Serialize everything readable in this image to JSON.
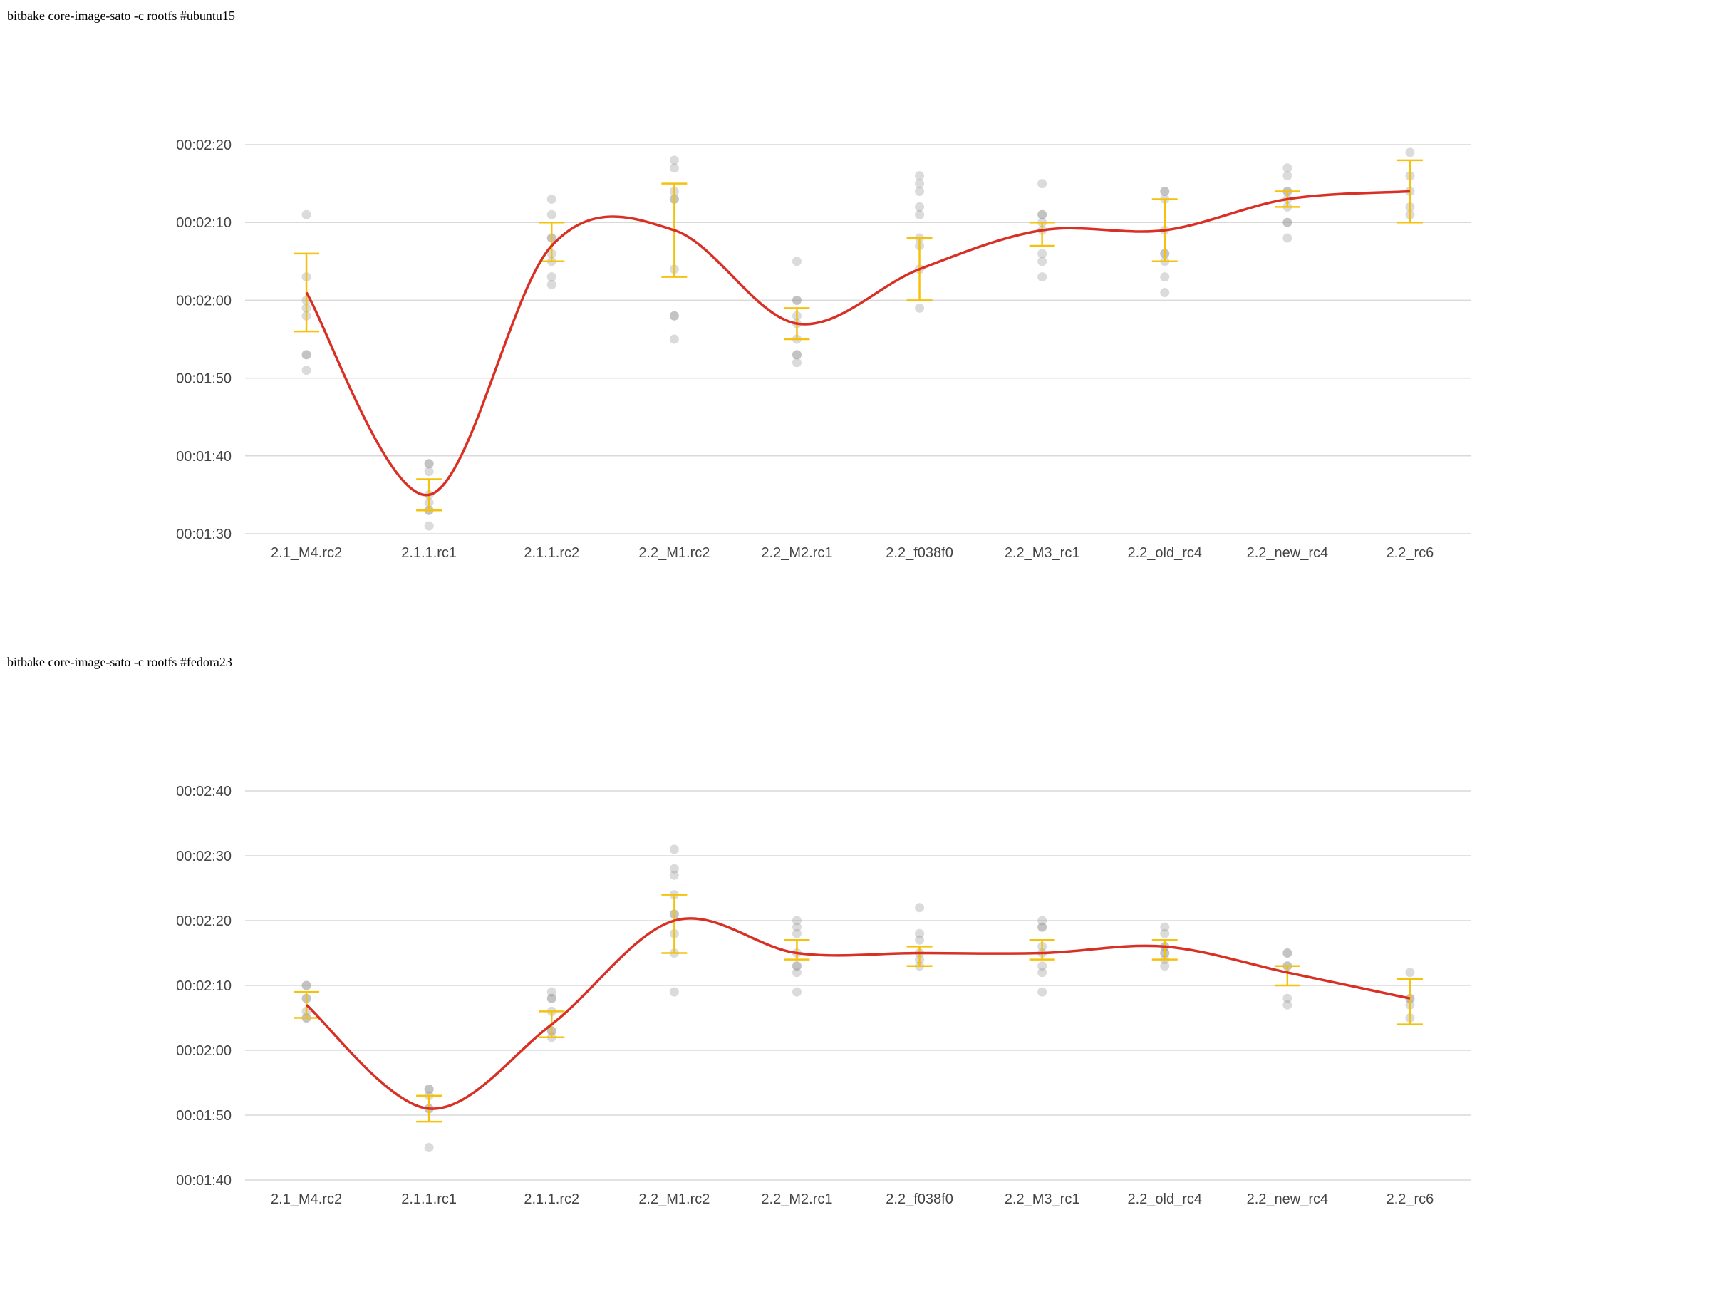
{
  "chart_data": [
    {
      "type": "line",
      "title": "bitbake core-image-sato -c rootfs #ubuntu15",
      "categories": [
        "2.1_M4.rc2",
        "2.1.1.rc1",
        "2.1.1.rc2",
        "2.2_M1.rc2",
        "2.2_M2.rc1",
        "2.2_f038f0",
        "2.2_M3_rc1",
        "2.2_old_rc4",
        "2.2_new_rc4",
        "2.2_rc6"
      ],
      "y_unit": "seconds",
      "ylim": [
        90,
        140
      ],
      "yticks": [
        90,
        100,
        110,
        120,
        130,
        140
      ],
      "ytick_labels": [
        "00:01:30",
        "00:01:40",
        "00:01:50",
        "00:02:00",
        "00:02:10",
        "00:02:20"
      ],
      "grid": true,
      "mean": [
        121,
        95,
        127,
        129,
        117,
        124,
        129,
        129,
        133,
        134
      ],
      "error_low": [
        116,
        93,
        125,
        123,
        115,
        120,
        127,
        125,
        132,
        130
      ],
      "error_high": [
        126,
        97,
        130,
        135,
        119,
        128,
        130,
        133,
        134,
        138
      ],
      "samples": [
        [
          131,
          123,
          120,
          119,
          118,
          113,
          113,
          111
        ],
        [
          99,
          99,
          98,
          95,
          94,
          93,
          93,
          91
        ],
        [
          133,
          131,
          128,
          128,
          126,
          125,
          123,
          122
        ],
        [
          138,
          137,
          134,
          133,
          133,
          124,
          118,
          118,
          115
        ],
        [
          125,
          120,
          120,
          118,
          117,
          115,
          113,
          113,
          112
        ],
        [
          136,
          135,
          134,
          132,
          131,
          128,
          127,
          124,
          119
        ],
        [
          135,
          131,
          131,
          130,
          129,
          126,
          125,
          123
        ],
        [
          134,
          134,
          133,
          129,
          126,
          126,
          125,
          123,
          121
        ],
        [
          137,
          136,
          134,
          134,
          133,
          132,
          130,
          130,
          128
        ],
        [
          139,
          136,
          134,
          132,
          131
        ]
      ],
      "colors": {
        "mean": "#d93025",
        "error": "#f4c20d",
        "samples": "#999999"
      }
    },
    {
      "type": "line",
      "title": "bitbake core-image-sato -c rootfs #fedora23",
      "categories": [
        "2.1_M4.rc2",
        "2.1.1.rc1",
        "2.1.1.rc2",
        "2.2_M1.rc2",
        "2.2_M2.rc1",
        "2.2_f038f0",
        "2.2_M3_rc1",
        "2.2_old_rc4",
        "2.2_new_rc4",
        "2.2_rc6"
      ],
      "y_unit": "seconds",
      "ylim": [
        100,
        160
      ],
      "yticks": [
        100,
        110,
        120,
        130,
        140,
        150,
        160
      ],
      "ytick_labels": [
        "00:01:40",
        "00:01:50",
        "00:02:00",
        "00:02:10",
        "00:02:20",
        "00:02:30",
        "00:02:40"
      ],
      "grid": true,
      "mean": [
        127,
        111,
        124,
        140,
        135,
        135,
        135,
        136,
        132,
        128
      ],
      "error_low": [
        125,
        109,
        122,
        135,
        134,
        133,
        134,
        134,
        130,
        124
      ],
      "error_high": [
        129,
        113,
        126,
        144,
        137,
        136,
        137,
        137,
        133,
        131
      ],
      "samples": [
        [
          130,
          130,
          128,
          128,
          126,
          125,
          125
        ],
        [
          114,
          114,
          113,
          111,
          111,
          105
        ],
        [
          129,
          128,
          128,
          126,
          123,
          123,
          122
        ],
        [
          151,
          148,
          147,
          144,
          141,
          141,
          138,
          135,
          129
        ],
        [
          140,
          139,
          138,
          135,
          133,
          133,
          132,
          129
        ],
        [
          142,
          138,
          137,
          135,
          134,
          133
        ],
        [
          140,
          139,
          139,
          136,
          135,
          133,
          132,
          129
        ],
        [
          139,
          138,
          136,
          136,
          135,
          135,
          134,
          133
        ],
        [
          135,
          135,
          133,
          133,
          128,
          127
        ],
        [
          132,
          128,
          128,
          127,
          125
        ]
      ],
      "colors": {
        "mean": "#d93025",
        "error": "#f4c20d",
        "samples": "#999999"
      }
    }
  ]
}
